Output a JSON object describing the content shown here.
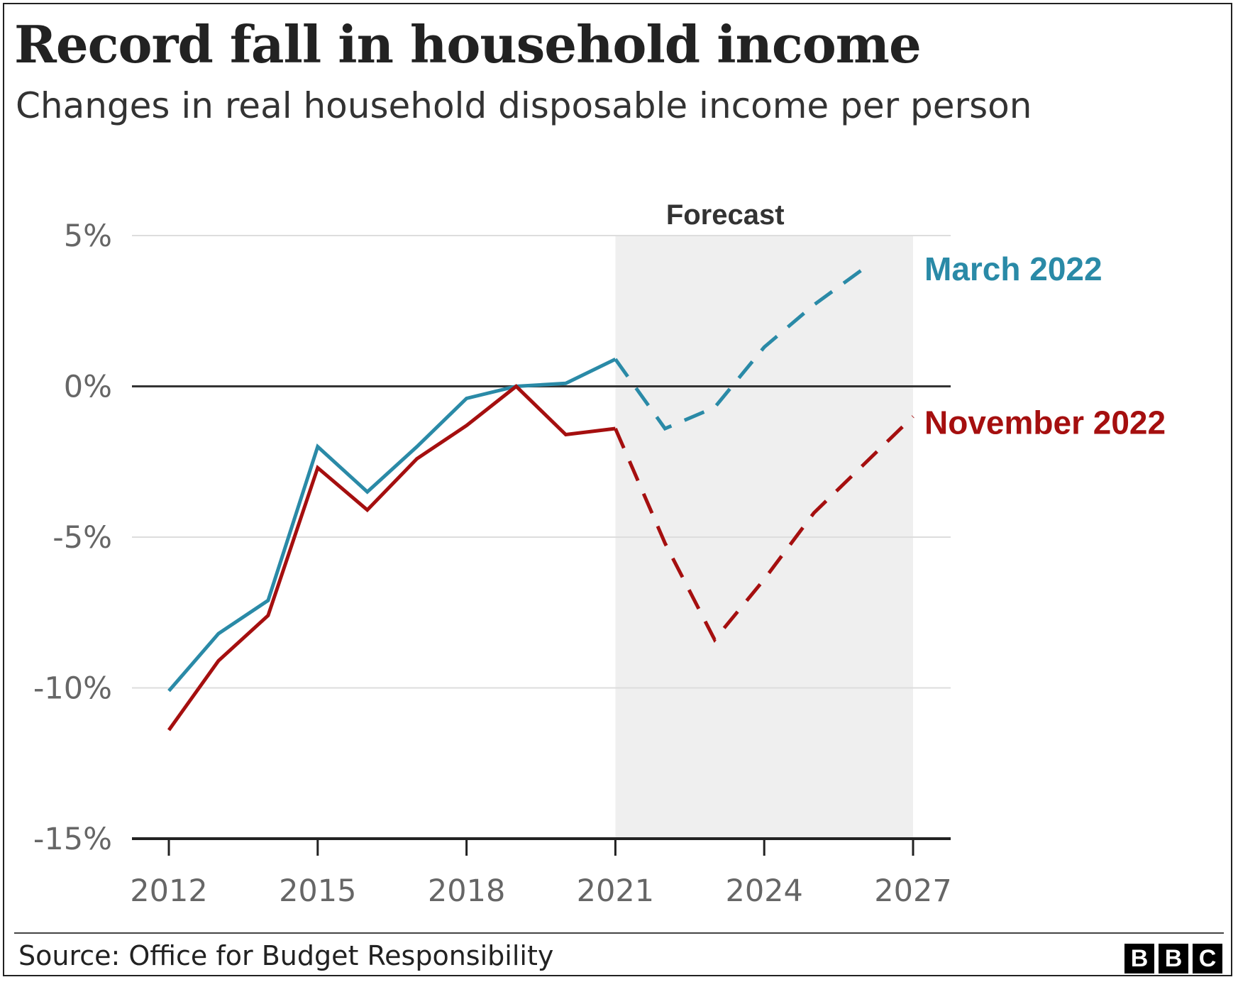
{
  "title": "Record fall in household income",
  "subtitle": "Changes in real household disposable income per person",
  "source": "Source: Office for Budget Responsibility",
  "logo": [
    "B",
    "B",
    "C"
  ],
  "colors": {
    "march": "#2a8aa7",
    "november": "#a50f0f",
    "forecast_band": "#efefef",
    "gridline": "#dddddd",
    "zero_line": "#333333"
  },
  "chart_data": {
    "type": "line",
    "title": "Record fall in household income",
    "subtitle": "Changes in real household disposable income per person",
    "x_ticks": [
      2012,
      2015,
      2018,
      2021,
      2024,
      2027
    ],
    "y_ticks": [
      5,
      0,
      -5,
      -10,
      -15
    ],
    "y_tick_labels": [
      "5%",
      "0%",
      "-5%",
      "-10%",
      "-15%"
    ],
    "xlim": [
      2011.3,
      2027.75
    ],
    "ylim": [
      -15,
      5
    ],
    "grid": true,
    "forecast": {
      "label": "Forecast",
      "from": 2021,
      "to": 2027
    },
    "series": [
      {
        "name": "March 2022",
        "color": "#2a8aa7",
        "actual": {
          "x": [
            2012,
            2013,
            2014,
            2015,
            2016,
            2017,
            2018,
            2019,
            2020,
            2021
          ],
          "y": [
            -10.1,
            -8.2,
            -7.1,
            -2.0,
            -3.5,
            -2.0,
            -0.4,
            0.0,
            0.1,
            0.9
          ]
        },
        "forecast": {
          "x": [
            2021,
            2022,
            2023,
            2024,
            2025,
            2026
          ],
          "y": [
            0.9,
            -1.4,
            -0.7,
            1.3,
            2.7,
            3.9
          ]
        }
      },
      {
        "name": "November 2022",
        "color": "#a50f0f",
        "actual": {
          "x": [
            2012,
            2013,
            2014,
            2015,
            2016,
            2017,
            2018,
            2019,
            2020,
            2021
          ],
          "y": [
            -11.4,
            -9.1,
            -7.6,
            -2.7,
            -4.1,
            -2.4,
            -1.3,
            0.0,
            -1.6,
            -1.4
          ]
        },
        "forecast": {
          "x": [
            2021,
            2022,
            2023,
            2024,
            2025,
            2026,
            2027
          ],
          "y": [
            -1.4,
            -5.2,
            -8.4,
            -6.4,
            -4.2,
            -2.6,
            -1.0
          ]
        }
      }
    ]
  }
}
